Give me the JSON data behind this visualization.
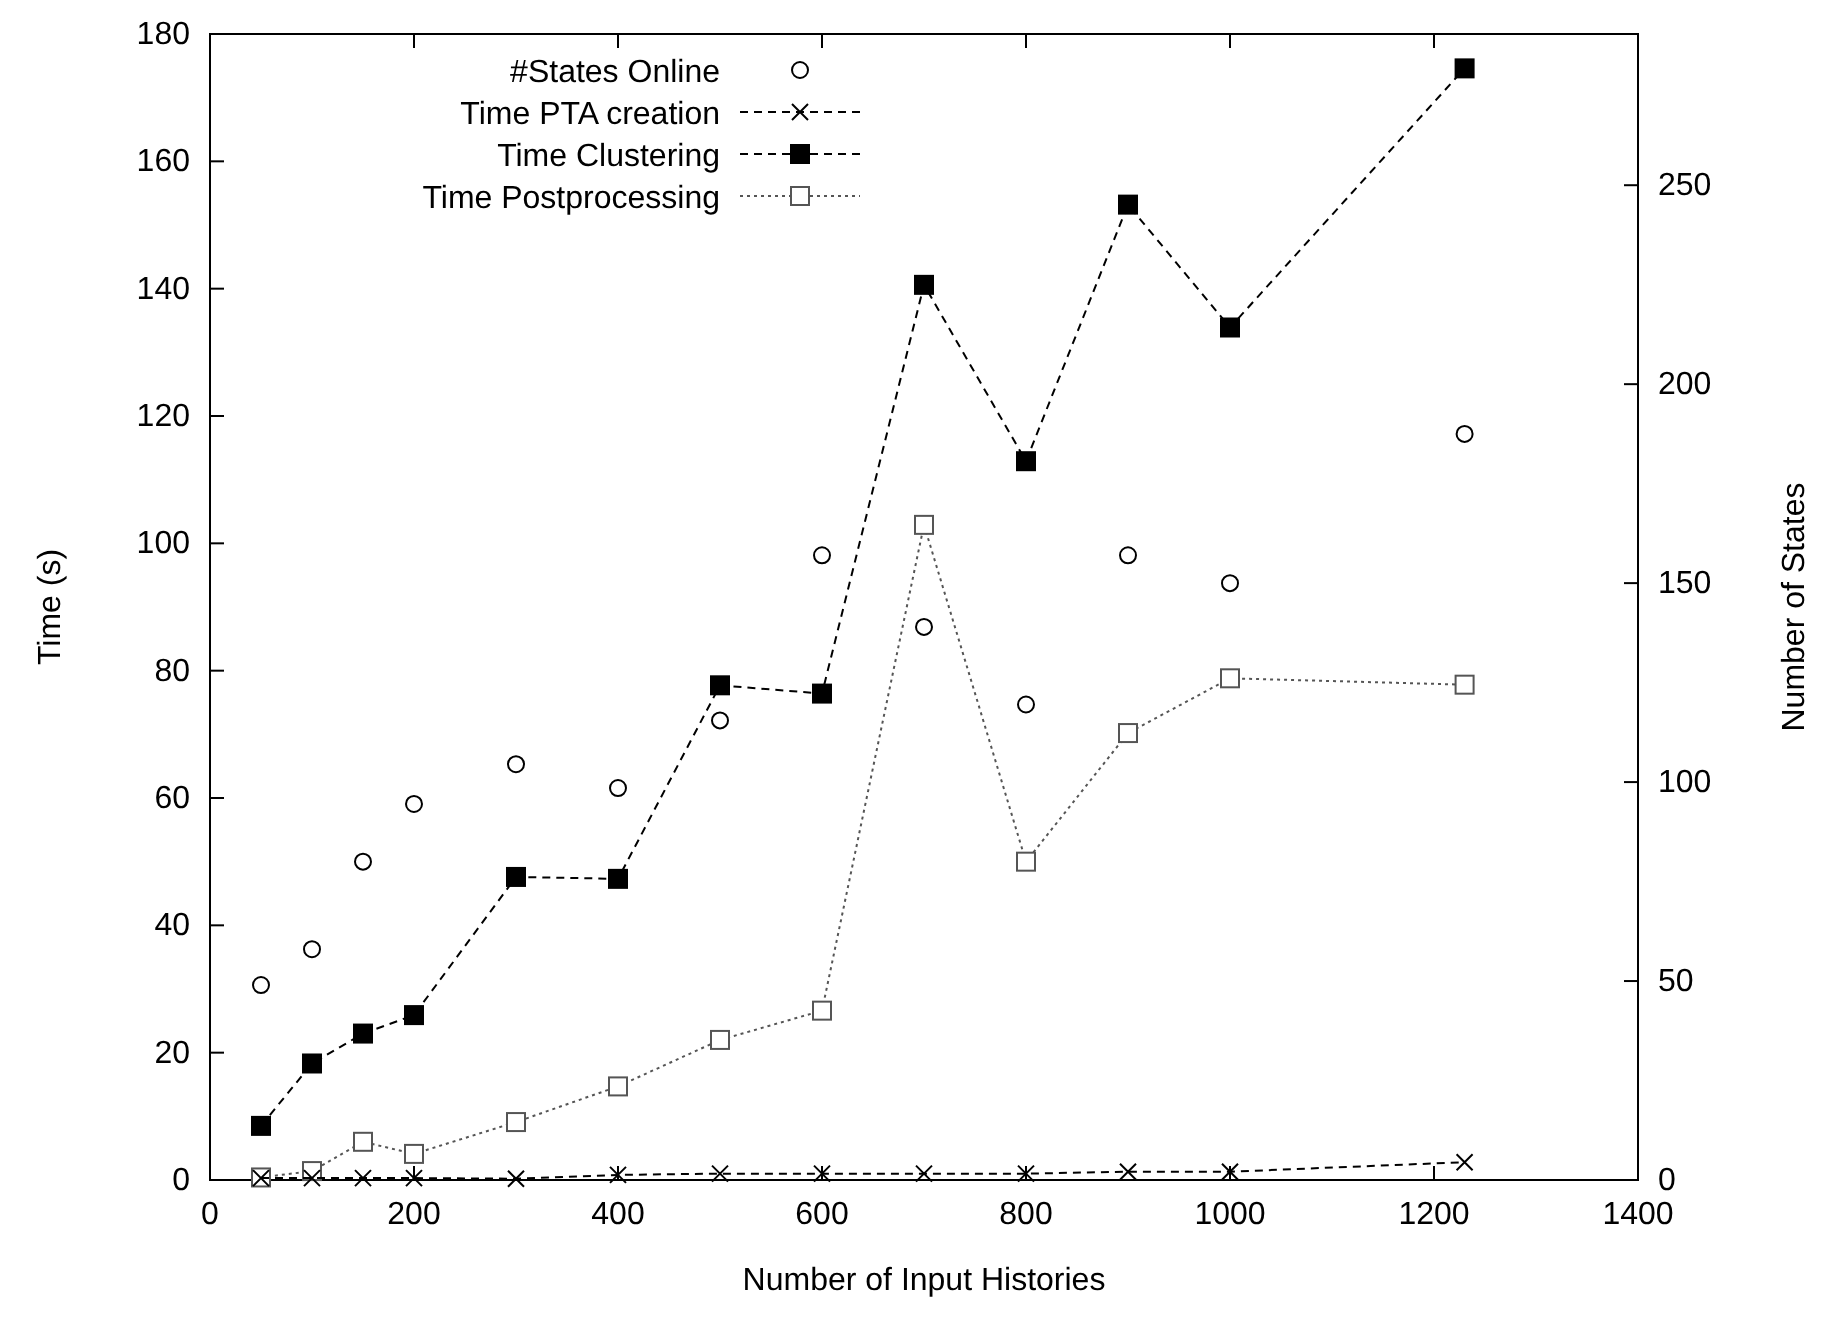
{
  "chart_data": {
    "type": "line",
    "xlabel": "Number of Input Histories",
    "ylabel": "Time (s)",
    "y2label": "Number of States",
    "x": [
      50,
      100,
      150,
      200,
      300,
      400,
      500,
      600,
      700,
      800,
      900,
      1000,
      1230
    ],
    "series": [
      {
        "name": "#States Online",
        "type": "scatter",
        "axis": "y2",
        "color": "#000000",
        "marker": "circle",
        "values": [
          49,
          58,
          80,
          94.5,
          104.5,
          98.5,
          115.5,
          157,
          139,
          119.5,
          157,
          150,
          187.5
        ]
      },
      {
        "name": "Time PTA creation",
        "color": "#000000",
        "marker": "cross",
        "line_style": "dashed",
        "values": [
          0.3,
          0.3,
          0.3,
          0.3,
          0.2,
          0.8,
          1,
          1,
          1,
          1,
          1.3,
          1.3,
          2.8
        ]
      },
      {
        "name": "Time Clustering",
        "color": "#000000",
        "marker": "square",
        "line_style": "dashed",
        "values": [
          8.5,
          18.3,
          23,
          25.9,
          47.6,
          47.3,
          77.7,
          76.4,
          140.6,
          112.9,
          153.2,
          133.9,
          174.6
        ]
      },
      {
        "name": "Time Postprocessing",
        "color": "#555555",
        "marker": "square",
        "line_style": "dotted",
        "values": [
          0.4,
          1.4,
          6,
          4.1,
          9.1,
          14.7,
          22,
          26.6,
          102.9,
          50,
          70.2,
          78.8,
          77.8
        ]
      }
    ],
    "xlim": [
      0,
      1400
    ],
    "xticks": [
      0,
      200,
      400,
      600,
      800,
      1000,
      1200,
      1400
    ],
    "ylim": [
      0,
      180
    ],
    "yticks": [
      0,
      20,
      40,
      60,
      80,
      100,
      120,
      140,
      160,
      180
    ],
    "y2lim": [
      0,
      288
    ],
    "y2ticks": [
      0,
      50,
      100,
      150,
      200,
      250
    ],
    "grid": false,
    "legend": "top left"
  }
}
